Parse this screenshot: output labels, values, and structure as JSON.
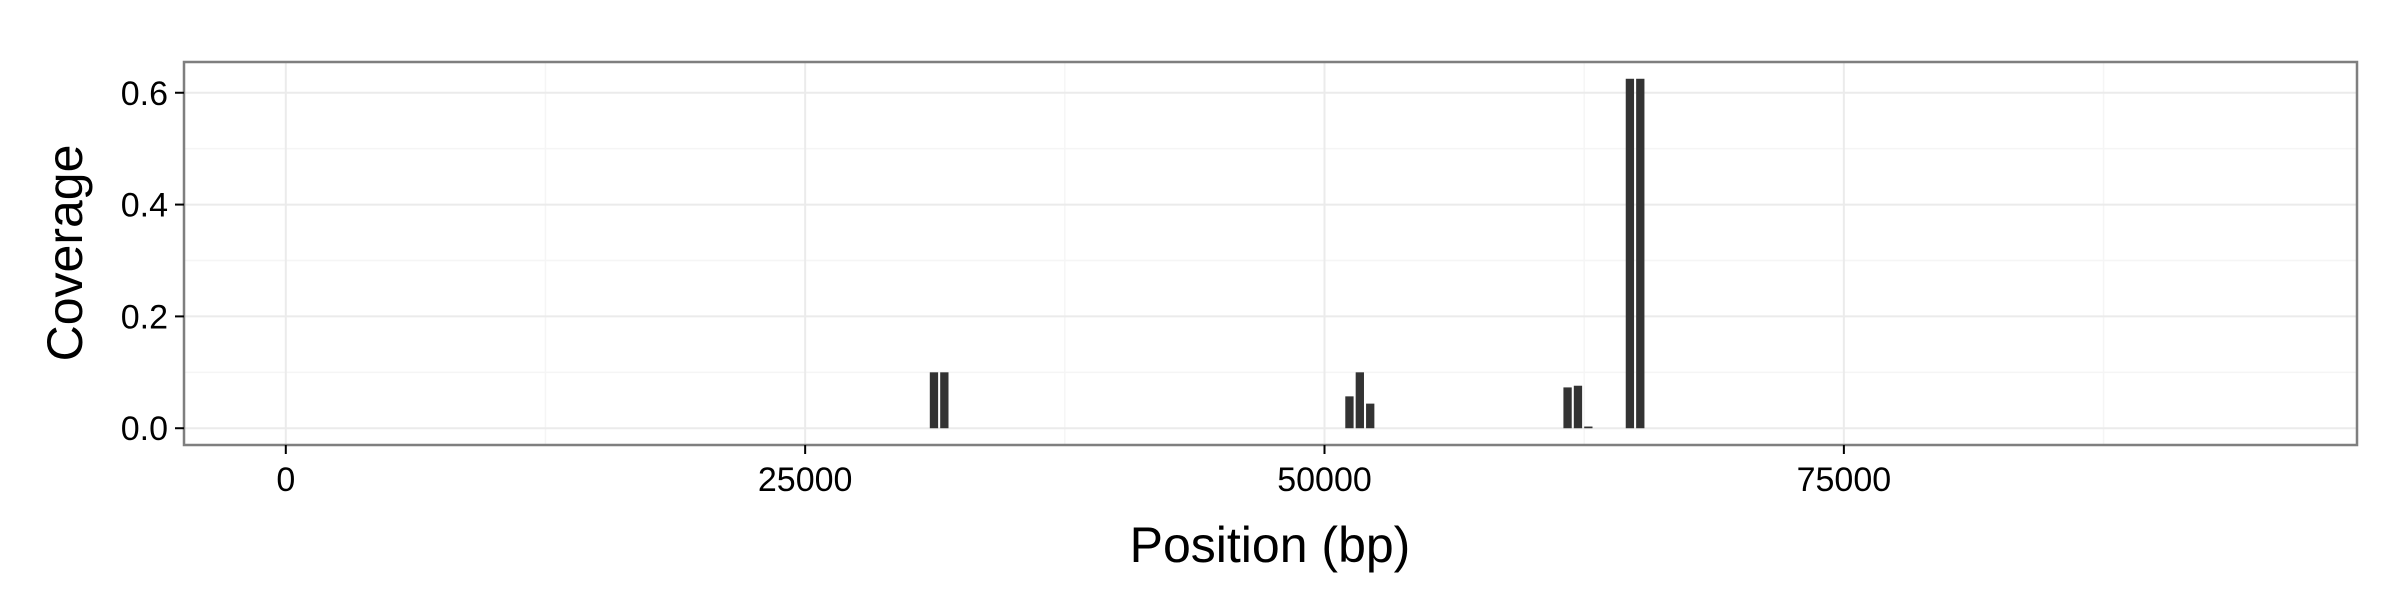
{
  "chart_data": {
    "type": "bar",
    "xlabel": "Position (bp)",
    "ylabel": "Coverage",
    "xlim": [
      -4900,
      99700
    ],
    "ylim": [
      -0.03,
      0.655
    ],
    "x_ticks": [
      0,
      25000,
      50000,
      75000
    ],
    "x_minor_ticks": [
      12500,
      37500,
      62500,
      87500
    ],
    "y_ticks": [
      0.0,
      0.2,
      0.4,
      0.6
    ],
    "y_tick_labels": [
      "0.0",
      "0.2",
      "0.4",
      "0.6"
    ],
    "y_minor_ticks": [
      0.1,
      0.3,
      0.5
    ],
    "grid": true,
    "bar_width": 400,
    "bars": [
      {
        "x": 31200,
        "value": 0.1
      },
      {
        "x": 31700,
        "value": 0.1
      },
      {
        "x": 51200,
        "value": 0.057
      },
      {
        "x": 51700,
        "value": 0.1
      },
      {
        "x": 52200,
        "value": 0.044
      },
      {
        "x": 61700,
        "value": 0.073
      },
      {
        "x": 62200,
        "value": 0.076
      },
      {
        "x": 62700,
        "value": 0.003
      },
      {
        "x": 64700,
        "value": 0.625
      },
      {
        "x": 65200,
        "value": 0.625
      }
    ],
    "colors": {
      "bar": "#333333",
      "panel_border": "#7f7f7f",
      "grid_major": "#ebebeb",
      "grid_minor": "#f5f5f5",
      "tick": "#000000"
    }
  }
}
